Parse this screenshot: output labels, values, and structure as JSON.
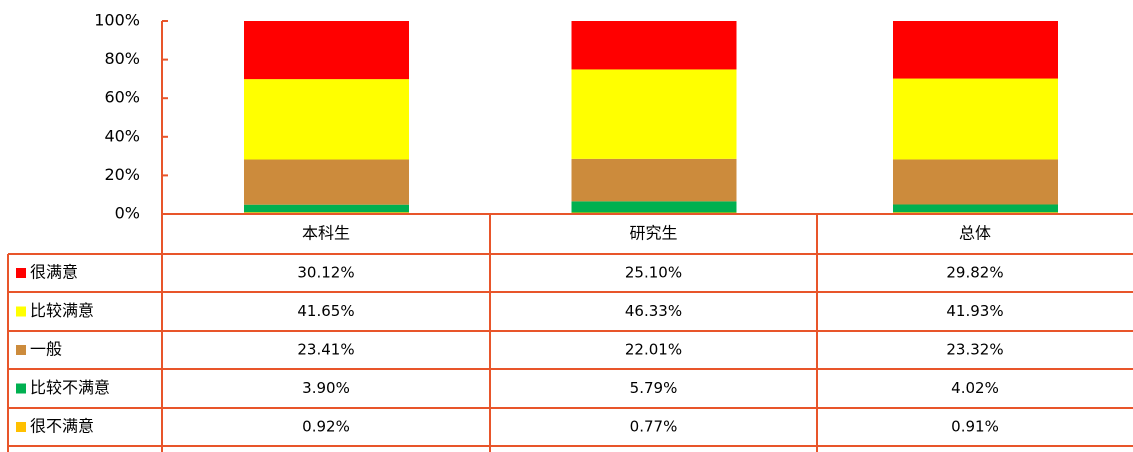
{
  "chart_data": {
    "type": "stacked_bar",
    "categories": [
      "本科生",
      "研究生",
      "总体"
    ],
    "series": [
      {
        "name": "很满意",
        "color": "#ff0000",
        "values": [
          30.12,
          25.1,
          29.82
        ],
        "value_labels": [
          "30.12%",
          "25.10%",
          "29.82%"
        ]
      },
      {
        "name": "比较满意",
        "color": "#ffff00",
        "values": [
          41.65,
          46.33,
          41.93
        ],
        "value_labels": [
          "41.65%",
          "46.33%",
          "41.93%"
        ]
      },
      {
        "name": "一般",
        "color": "#cc8b3c",
        "values": [
          23.41,
          22.01,
          23.32
        ],
        "value_labels": [
          "23.41%",
          "22.01%",
          "23.32%"
        ]
      },
      {
        "name": "比较不满意",
        "color": "#00b050",
        "values": [
          3.9,
          5.79,
          4.02
        ],
        "value_labels": [
          "3.90%",
          "5.79%",
          "4.02%"
        ]
      },
      {
        "name": "很不满意",
        "color": "#ffc000",
        "values": [
          0.92,
          0.77,
          0.91
        ],
        "value_labels": [
          "0.92%",
          "0.77%",
          "0.91%"
        ]
      }
    ],
    "ylim": [
      0,
      100
    ],
    "yticks": [
      {
        "value": 0,
        "label": "0%"
      },
      {
        "value": 20,
        "label": "20%"
      },
      {
        "value": 40,
        "label": "40%"
      },
      {
        "value": 60,
        "label": "60%"
      },
      {
        "value": 80,
        "label": "80%"
      },
      {
        "value": 100,
        "label": "100%"
      }
    ]
  }
}
